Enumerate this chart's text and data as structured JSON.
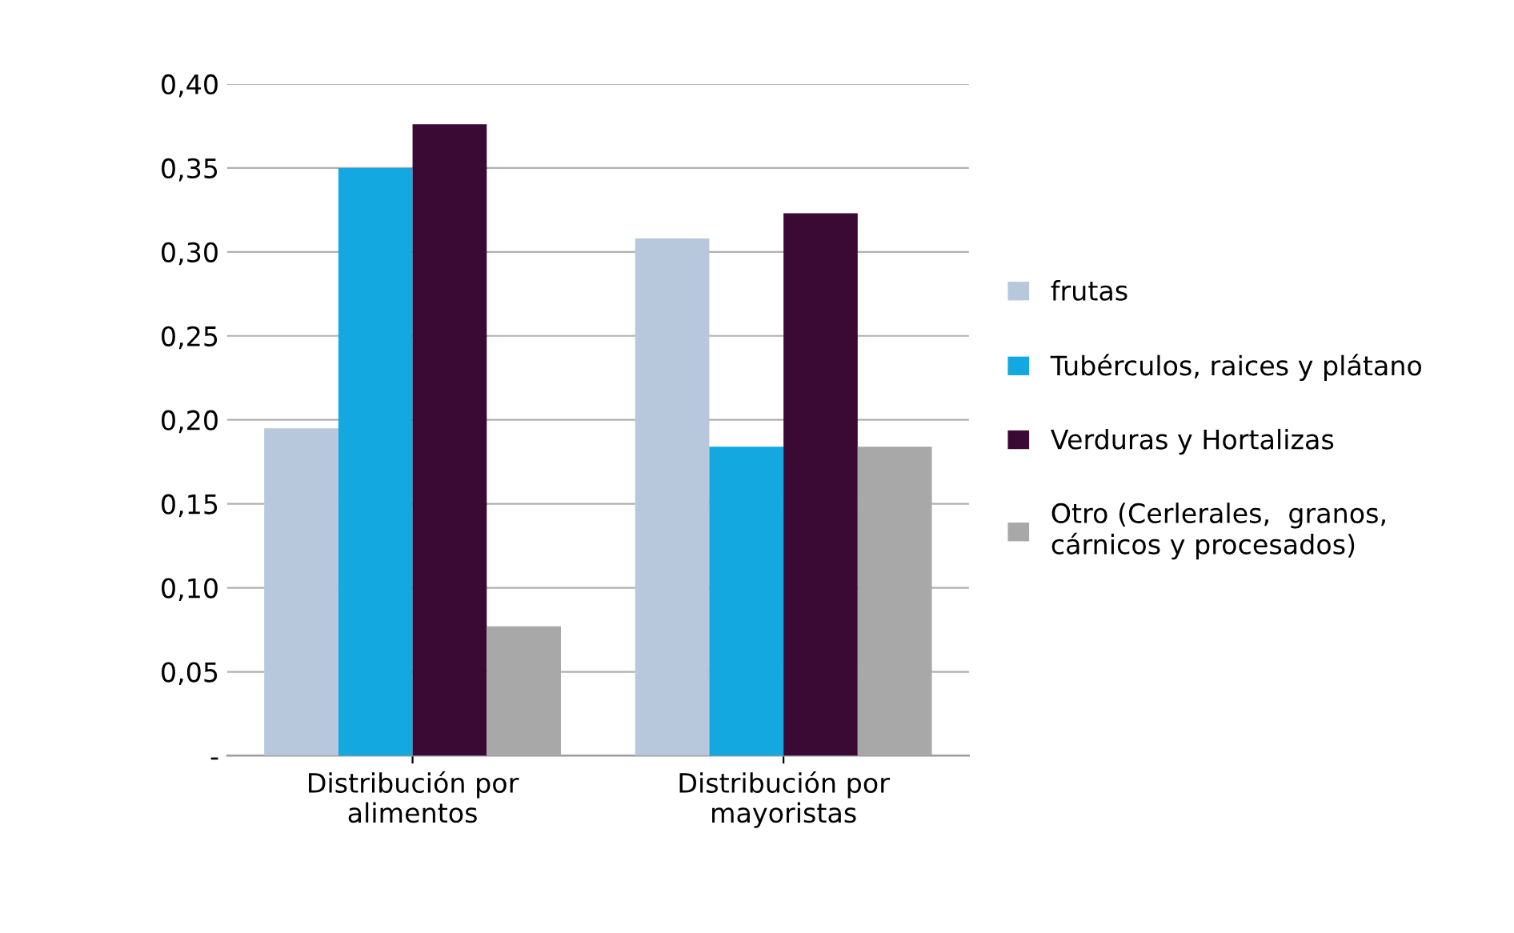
{
  "chart_data": {
    "type": "bar",
    "categories": [
      "Distribución por\nalimentos",
      "Distribución por\nmayoristas"
    ],
    "series": [
      {
        "name": "frutas",
        "color": "#b8c8dc",
        "values": [
          0.195,
          0.308
        ]
      },
      {
        "name": "Tubérculos, raices y plátano",
        "color": "#14a8e0",
        "values": [
          0.35,
          0.184
        ]
      },
      {
        "name": "Verduras y Hortalizas",
        "color": "#3a0a35",
        "values": [
          0.376,
          0.323
        ]
      },
      {
        "name": "Otro (Cerlerales,  granos,\ncárnicos y procesados)",
        "color": "#a8a8a8",
        "values": [
          0.077,
          0.184
        ]
      }
    ],
    "ylim": [
      0,
      0.4
    ],
    "yticks": [
      {
        "value": 0,
        "label": "-"
      },
      {
        "value": 0.05,
        "label": "0,05"
      },
      {
        "value": 0.1,
        "label": "0,10"
      },
      {
        "value": 0.15,
        "label": "0,15"
      },
      {
        "value": 0.2,
        "label": "0,20"
      },
      {
        "value": 0.25,
        "label": "0,25"
      },
      {
        "value": 0.3,
        "label": "0,30"
      },
      {
        "value": 0.35,
        "label": "0,35"
      },
      {
        "value": 0.4,
        "label": "0,40"
      }
    ],
    "grid": "y",
    "legend": "right"
  }
}
